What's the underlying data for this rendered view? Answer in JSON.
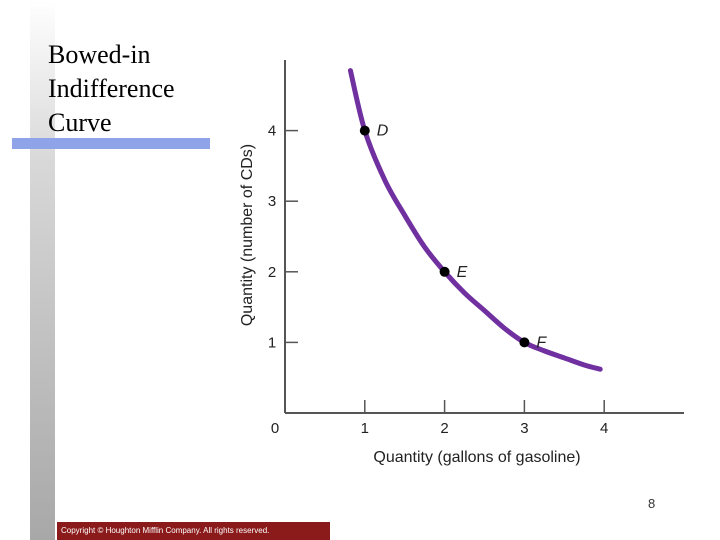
{
  "slide": {
    "title": "Bowed-in Indifference Curve",
    "page_number": 8,
    "copyright": "Copyright © Houghton Mifflin Company. All rights reserved."
  },
  "chart_data": {
    "type": "line",
    "x_label": "Quantity (gallons of gasoline)",
    "y_label": "Quantity (number of CDs)",
    "origin_label": "0",
    "xlim": [
      0,
      5
    ],
    "ylim": [
      0,
      5
    ],
    "xticks": [
      1,
      2,
      3,
      4
    ],
    "yticks": [
      1,
      2,
      3,
      4
    ],
    "series": [
      {
        "color": "#7030a0",
        "x": [
          0.82,
          1,
          1.25,
          1.5,
          1.75,
          2,
          2.25,
          2.5,
          2.75,
          3,
          3.25,
          3.5,
          3.75,
          3.95
        ],
        "values": [
          4.85,
          4,
          3.3,
          2.8,
          2.35,
          2,
          1.7,
          1.45,
          1.2,
          1,
          0.88,
          0.78,
          0.68,
          0.62
        ]
      }
    ],
    "points": {
      "color": "#000000",
      "x": [
        1,
        2,
        3
      ],
      "values": [
        4,
        2,
        1
      ],
      "labels": [
        "D",
        "E",
        "F"
      ]
    }
  }
}
